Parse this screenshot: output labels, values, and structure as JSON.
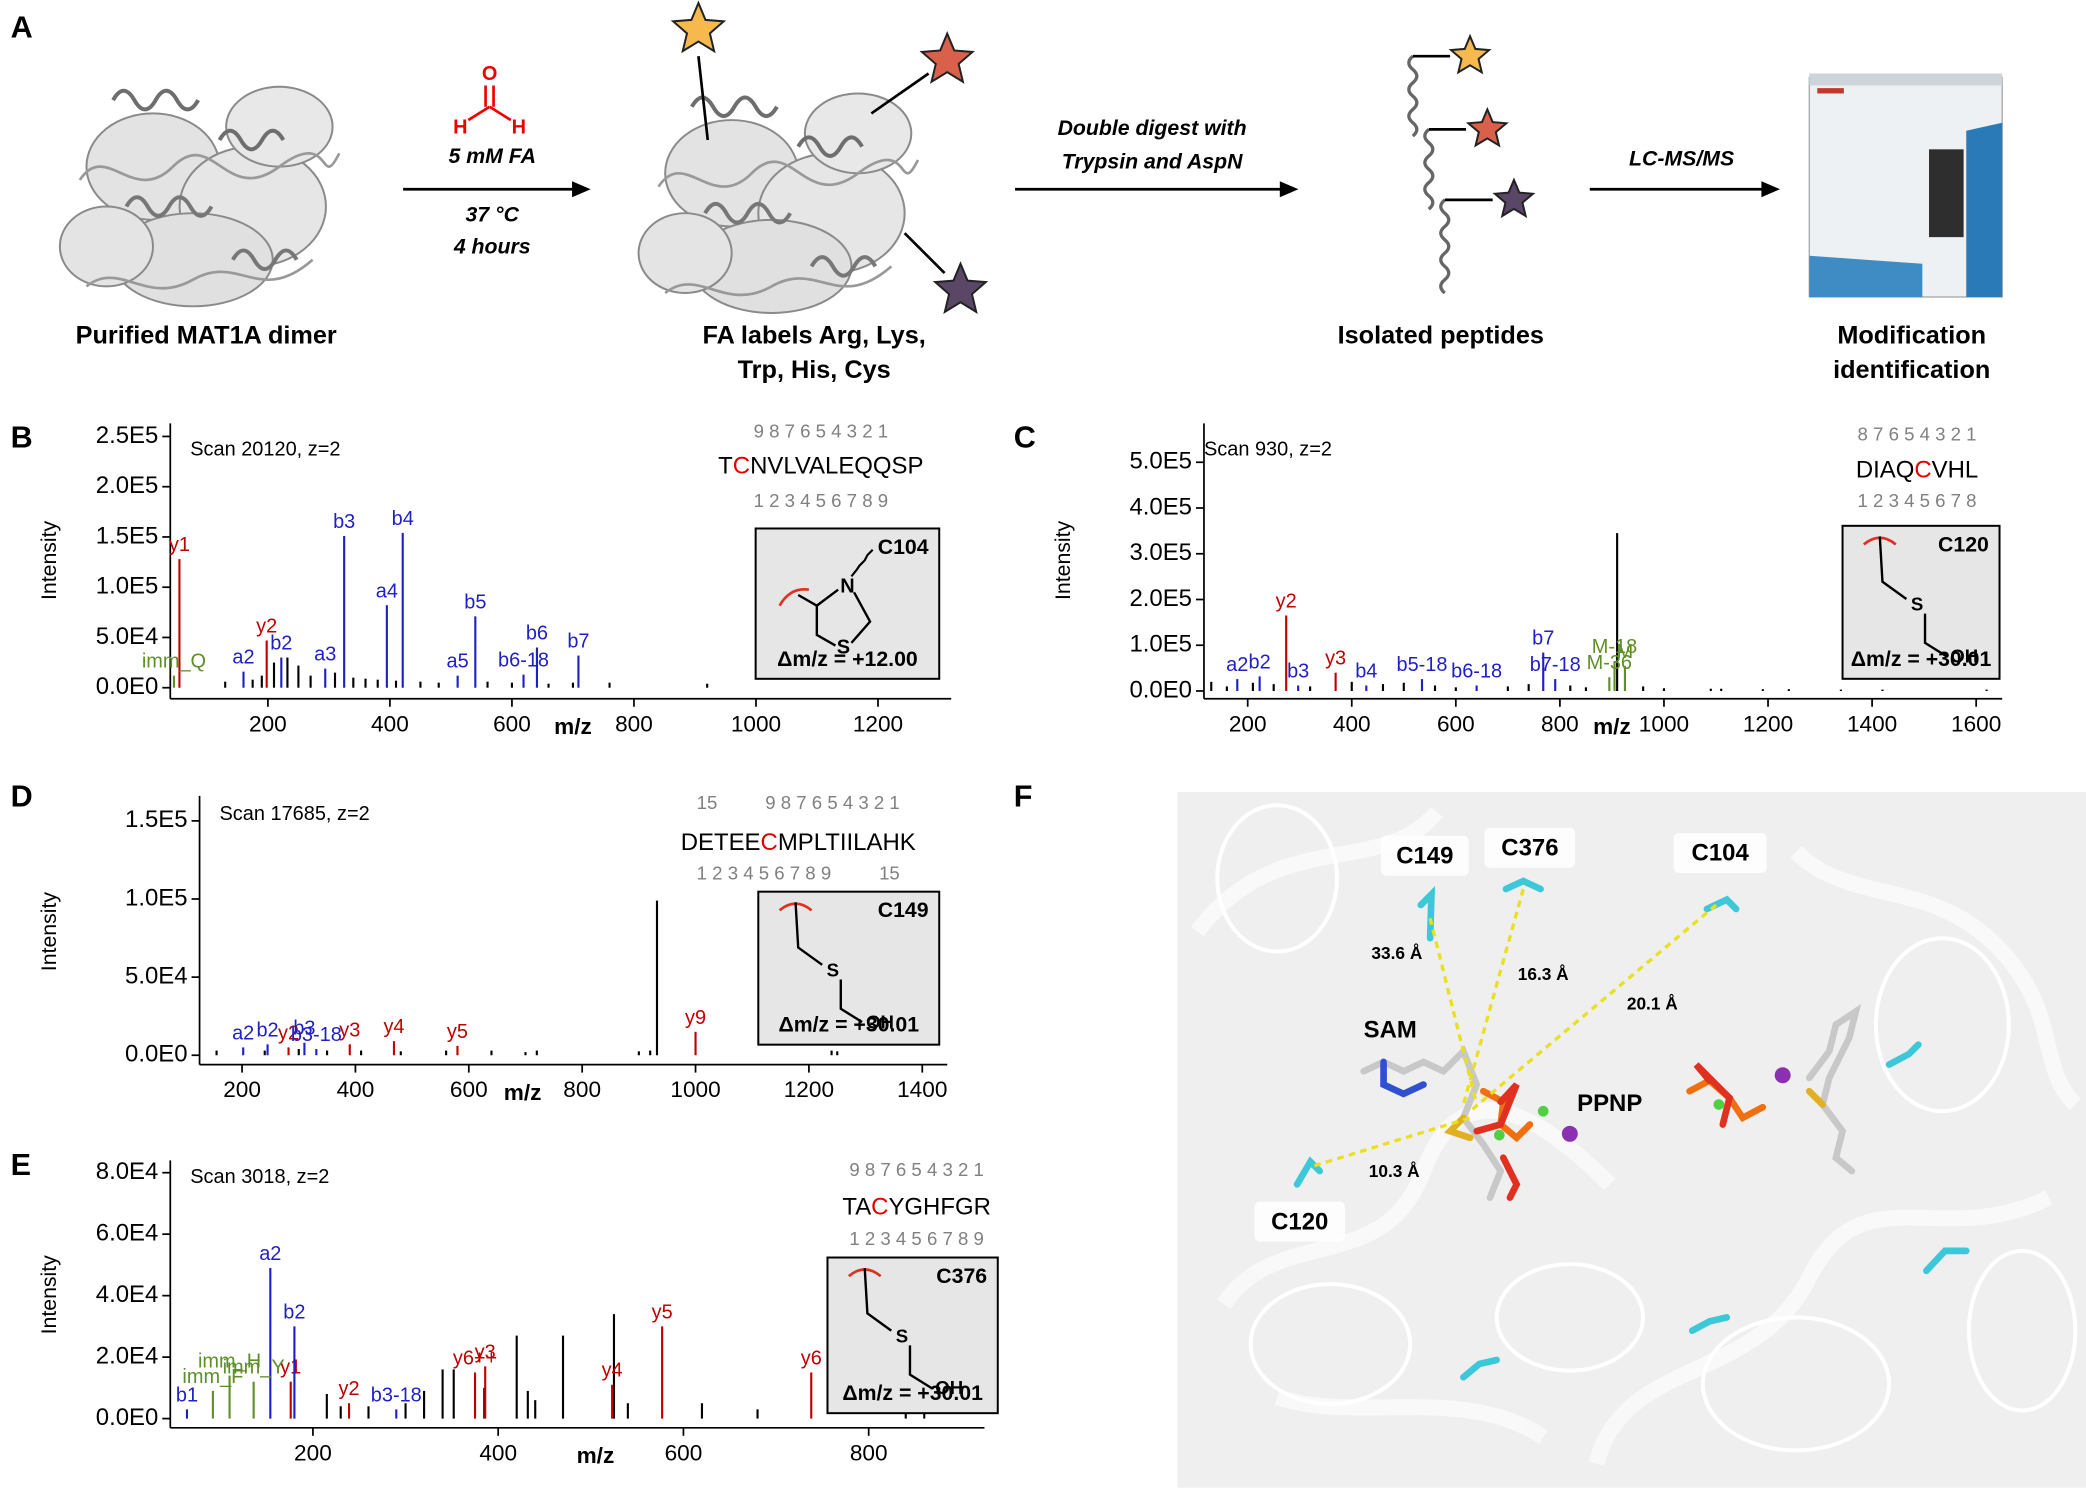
{
  "panel_a": {
    "letter": "A",
    "steps": [
      [
        "Purified MAT1A dimer"
      ],
      [
        "FA labels Arg, Lys,",
        "Trp, His, Cys"
      ],
      [
        "Isolated peptides"
      ],
      [
        "Modification",
        "identification"
      ]
    ],
    "reagent_atoms": [
      "O",
      "H",
      "H"
    ],
    "arrows": [
      [
        "5 mM FA",
        "37 °C",
        "4 hours"
      ],
      [
        "Double digest with",
        "Trypsin and AspN"
      ],
      [
        "LC-MS/MS"
      ]
    ]
  },
  "chart_data": [
    {
      "type": "stem",
      "panel": "B",
      "scan": "Scan 20120, z=2",
      "ylabel": "Intensity",
      "xlabel": "m/z",
      "xlim": [
        40,
        1320
      ],
      "ylim": [
        -11000,
        263000
      ],
      "xticks": [
        200,
        400,
        600,
        800,
        1000,
        1200
      ],
      "yticks": [
        {
          "value": 0,
          "label": "0.0E0"
        },
        {
          "value": 50000,
          "label": "5.0E4"
        },
        {
          "value": 100000,
          "label": "1.0E5"
        },
        {
          "value": 150000,
          "label": "1.5E5"
        },
        {
          "value": 200000,
          "label": "2.0E5"
        },
        {
          "value": 250000,
          "label": "2.5E5"
        }
      ],
      "series": [
        {
          "color": "#000000",
          "x": [
            130,
            175,
            190,
            210,
            232,
            250,
            270,
            310,
            340,
            360,
            380,
            410,
            450,
            480,
            560,
            600,
            660,
            700,
            760,
            920
          ],
          "values": [
            6000,
            8000,
            12000,
            25000,
            30000,
            22000,
            12000,
            15000,
            10000,
            9000,
            8000,
            7000,
            6000,
            5000,
            6000,
            5000,
            4000,
            5000,
            5000,
            4000
          ]
        },
        {
          "color": "#c00000",
          "x": [
            55,
            198
          ],
          "values": [
            128000,
            47000
          ],
          "labels": [
            "y1",
            "y2"
          ]
        },
        {
          "color": "#1f1fc8",
          "x": [
            160,
            222,
            294,
            325,
            395,
            421,
            511,
            540,
            619,
            641,
            709
          ],
          "values": [
            16000,
            30000,
            19000,
            151000,
            82000,
            154000,
            12000,
            71000,
            13000,
            40000,
            32000
          ],
          "labels": [
            "a2",
            "b2",
            "a3",
            "b3",
            "a4",
            "b4",
            "a5",
            "b5",
            "b6-18",
            "b6",
            "b7"
          ]
        },
        {
          "color": "#5f8f2a",
          "x": [
            46
          ],
          "values": [
            12000
          ],
          "labels": [
            "imm_Q"
          ]
        }
      ],
      "peptide": {
        "top_numbers": [
          "9 8 7 6 5 4 3 2 1"
        ],
        "sequence": [
          "T",
          "C",
          "NVLVALEQQSP"
        ],
        "modified_index": 1,
        "bottom_numbers": [
          "1 2 3 4 5 6 7 8 9"
        ]
      },
      "site": "C104",
      "atoms": [
        "N",
        "S"
      ],
      "mass_shift": "Δm/z = +12.00"
    },
    {
      "type": "stem",
      "panel": "C",
      "scan": "Scan 930, z=2",
      "ylabel": "Intensity",
      "xlabel": "m/z",
      "xlim": [
        116,
        1650
      ],
      "ylim": [
        -17000,
        585000
      ],
      "xticks": [
        200,
        400,
        600,
        800,
        1000,
        1200,
        1400,
        1600
      ],
      "yticks": [
        {
          "value": 0,
          "label": "0.0E0"
        },
        {
          "value": 100000,
          "label": "1.0E5"
        },
        {
          "value": 200000,
          "label": "2.0E5"
        },
        {
          "value": 300000,
          "label": "3.0E5"
        },
        {
          "value": 400000,
          "label": "4.0E5"
        },
        {
          "value": 500000,
          "label": "5.0E5"
        }
      ],
      "series": [
        {
          "color": "#000000",
          "x": [
            130,
            160,
            210,
            250,
            320,
            400,
            460,
            500,
            560,
            600,
            700,
            740,
            820,
            850,
            910,
            960,
            1000,
            1090,
            1110,
            1190,
            1240,
            1340,
            1420,
            1620
          ],
          "values": [
            20000,
            10000,
            18000,
            15000,
            10000,
            20000,
            15000,
            18000,
            12000,
            8000,
            10000,
            15000,
            12000,
            8000,
            345000,
            10000,
            6000,
            5000,
            5000,
            4000,
            4000,
            3000,
            3000,
            3000
          ]
        },
        {
          "color": "#c00000",
          "x": [
            274,
            369
          ],
          "values": [
            165000,
            40000
          ],
          "labels": [
            "y2",
            "y3"
          ]
        },
        {
          "color": "#1f1fc8",
          "x": [
            180,
            223,
            297,
            428,
            535,
            640,
            768,
            791
          ],
          "values": [
            26000,
            32000,
            12000,
            12000,
            26000,
            12000,
            84000,
            26000
          ],
          "labels": [
            "a2",
            "b2",
            "b3",
            "b4",
            "b5-18",
            "b6-18",
            "b7",
            "b7-18"
          ]
        },
        {
          "color": "#5f8f2a",
          "x": [
            895,
            905,
            925
          ],
          "values": [
            30000,
            65000,
            55000
          ],
          "labels": [
            "M-36",
            "M-18",
            "M"
          ]
        }
      ],
      "peptide": {
        "top_numbers": [
          "8 7 6 5 4 3 2 1"
        ],
        "sequence": [
          "DIAQ",
          "C",
          "VHL"
        ],
        "modified_index": 1,
        "bottom_numbers": [
          "1 2 3 4 5 6 7 8"
        ]
      },
      "site": "C120",
      "atoms": [
        "S",
        "OH"
      ],
      "mass_shift": "Δm/z = +30.01"
    },
    {
      "type": "stem",
      "panel": "D",
      "scan": "Scan 17685, z=2",
      "ylabel": "Intensity",
      "xlabel": "m/z",
      "xlim": [
        125,
        1444
      ],
      "ylim": [
        -6000,
        166000
      ],
      "xticks": [
        200,
        400,
        600,
        800,
        1000,
        1200,
        1400
      ],
      "yticks": [
        {
          "value": 0,
          "label": "0.0E0"
        },
        {
          "value": 50000,
          "label": "5.0E4"
        },
        {
          "value": 100000,
          "label": "1.0E5"
        },
        {
          "value": 150000,
          "label": "1.5E5"
        }
      ],
      "series": [
        {
          "color": "#000000",
          "x": [
            155,
            240,
            300,
            350,
            410,
            480,
            560,
            640,
            700,
            720,
            900,
            920,
            932,
            1240,
            1250
          ],
          "values": [
            3000,
            3000,
            4000,
            3000,
            3000,
            2500,
            3000,
            3000,
            2000,
            3000,
            2500,
            3000,
            99000,
            3000,
            2500
          ]
        },
        {
          "color": "#c00000",
          "x": [
            282,
            390,
            468,
            580,
            1000
          ],
          "values": [
            5000,
            7000,
            9000,
            6000,
            15000
          ],
          "labels": [
            "y2",
            "y3",
            "y4",
            "y5",
            "y9"
          ]
        },
        {
          "color": "#1f1fc8",
          "x": [
            202,
            245,
            310,
            331
          ],
          "values": [
            5000,
            7000,
            8000,
            4000
          ],
          "labels": [
            "a2",
            "b2",
            "b3",
            "b3-18"
          ]
        }
      ],
      "peptide": {
        "top_numbers": [
          "15",
          "9 8 7 6 5 4 3 2 1"
        ],
        "sequence": [
          "DETEE",
          "C",
          "MPLTIILAHK"
        ],
        "modified_index": 1,
        "bottom_numbers": [
          "1 2 3 4 5 6 7 8 9",
          "15"
        ]
      },
      "site": "C149",
      "atoms": [
        "S",
        "OH"
      ],
      "mass_shift": "Δm/z = +30.01"
    },
    {
      "type": "stem",
      "panel": "E",
      "scan": "Scan 3018, z=2",
      "ylabel": "Intensity",
      "xlabel": "m/z",
      "xlim": [
        46,
        925
      ],
      "ylim": [
        -3000,
        84000
      ],
      "xticks": [
        200,
        400,
        600,
        800
      ],
      "yticks": [
        {
          "value": 0,
          "label": "0.0E0"
        },
        {
          "value": 20000,
          "label": "2.0E4"
        },
        {
          "value": 40000,
          "label": "4.0E4"
        },
        {
          "value": 60000,
          "label": "6.0E4"
        },
        {
          "value": 80000,
          "label": "8.0E4"
        }
      ],
      "series": [
        {
          "color": "#000000",
          "x": [
            215,
            230,
            260,
            300,
            320,
            340,
            352,
            385,
            420,
            432,
            440,
            470,
            525,
            540,
            620,
            680,
            840,
            860
          ],
          "values": [
            8000,
            4000,
            4000,
            5000,
            9000,
            16000,
            16000,
            10000,
            27000,
            9000,
            6000,
            27000,
            34000,
            5000,
            5000,
            3000,
            3000,
            2000
          ]
        },
        {
          "color": "#c00000",
          "x": [
            176,
            239,
            375,
            386,
            523,
            577,
            738
          ],
          "values": [
            12000,
            5000,
            15000,
            17000,
            11000,
            30000,
            15000
          ],
          "labels": [
            "y1",
            "y2",
            "y6++",
            "y3",
            "y4",
            "y5",
            "y6"
          ]
        },
        {
          "color": "#1f1fc8",
          "x": [
            64,
            154,
            180,
            290
          ],
          "values": [
            3000,
            49000,
            30000,
            3000
          ],
          "labels": [
            "b1",
            "a2",
            "b2",
            "b3-18"
          ]
        },
        {
          "color": "#5f8f2a",
          "x": [
            92,
            110,
            136
          ],
          "values": [
            9000,
            14000,
            12000
          ],
          "labels": [
            "imm_F",
            "imm_H",
            "imm_Y"
          ]
        }
      ],
      "peptide": {
        "top_numbers": [
          "9 8 7 6 5 4 3 2 1"
        ],
        "sequence": [
          "TA",
          "C",
          "YGHFGR"
        ],
        "modified_index": 1,
        "bottom_numbers": [
          "1 2 3 4 5 6 7 8 9"
        ]
      },
      "site": "C376",
      "atoms": [
        "S",
        "OH"
      ],
      "mass_shift": "Δm/z = +30.01"
    }
  ],
  "panel_f": {
    "letter": "F",
    "residues": [
      "C149",
      "C376",
      "C104",
      "C120"
    ],
    "ligands": [
      "SAM",
      "PPNP"
    ],
    "distances": [
      "33.6 Å",
      "16.3 Å",
      "20.1 Å",
      "10.3 Å"
    ]
  }
}
